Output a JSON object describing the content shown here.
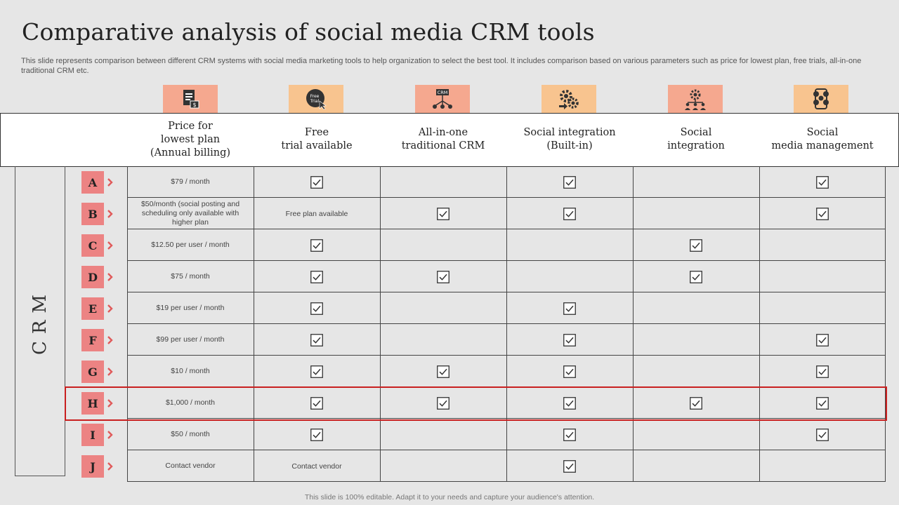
{
  "slide": {
    "title": "Comparative analysis of social media CRM tools",
    "subtitle": "This slide represents comparison between different CRM systems with social media marketing tools to help organization to select the best tool. It includes comparison based on various parameters such as price for lowest plan, free trials, all-in-one traditional CRM etc.",
    "footer": "This slide is 100% editable. Adapt it to your needs and capture your audience's attention.",
    "crm_label": "CRM"
  },
  "icons": [
    {
      "name": "document-price-icon",
      "color": "#f5a88f"
    },
    {
      "name": "free-trial-icon",
      "color": "#f8c48f",
      "text": "Free Trial"
    },
    {
      "name": "crm-network-icon",
      "color": "#f5a88f",
      "text": "CRM"
    },
    {
      "name": "gear-integration-icon",
      "color": "#f8c48f"
    },
    {
      "name": "social-people-icon",
      "color": "#f5a88f"
    },
    {
      "name": "social-media-icon",
      "color": "#f8c48f"
    }
  ],
  "columns": [
    "Price for\nlowest plan\n(Annual billing)",
    "Free\ntrial available",
    "All-in-one\ntraditional CRM",
    "Social integration\n(Built-in)",
    "Social\nintegration",
    "Social\nmedia management"
  ],
  "rows": [
    {
      "letter": "A",
      "price": "$79 / month",
      "trial_text": "",
      "checks": [
        true,
        false,
        true,
        false,
        true
      ]
    },
    {
      "letter": "B",
      "price": "$50/month  (social posting and scheduling only available with higher plan",
      "trial_text": "Free plan available",
      "checks": [
        false,
        true,
        true,
        false,
        true
      ]
    },
    {
      "letter": "C",
      "price": "$12.50 per user / month",
      "trial_text": "",
      "checks": [
        true,
        false,
        false,
        true,
        false
      ]
    },
    {
      "letter": "D",
      "price": "$75 / month",
      "trial_text": "",
      "checks": [
        true,
        true,
        false,
        true,
        false
      ]
    },
    {
      "letter": "E",
      "price": "$19 per user / month",
      "trial_text": "",
      "checks": [
        true,
        false,
        true,
        false,
        false
      ]
    },
    {
      "letter": "F",
      "price": "$99 per user / month",
      "trial_text": "",
      "checks": [
        true,
        false,
        true,
        false,
        true
      ]
    },
    {
      "letter": "G",
      "price": "$10 / month",
      "trial_text": "",
      "checks": [
        true,
        true,
        true,
        false,
        true
      ]
    },
    {
      "letter": "H",
      "price": "$1,000 / month",
      "trial_text": "",
      "checks": [
        true,
        true,
        true,
        true,
        true
      ],
      "highlighted": true
    },
    {
      "letter": "I",
      "price": "$50 / month",
      "trial_text": "",
      "checks": [
        true,
        false,
        true,
        false,
        true
      ]
    },
    {
      "letter": "J",
      "price": "Contact vendor",
      "trial_text": "Contact vendor",
      "checks": [
        false,
        false,
        true,
        false,
        false
      ]
    }
  ],
  "colors": {
    "letter_box": "#ec8383",
    "chevron": "#e05a5a",
    "highlight_border": "#c91f1f"
  }
}
